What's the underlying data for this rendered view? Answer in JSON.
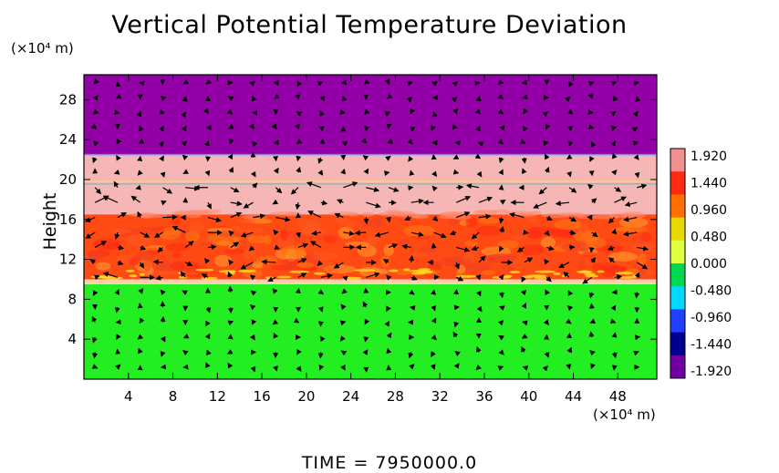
{
  "chart_data": {
    "type": "heatmap",
    "title": "Vertical Potential Temperature Deviation",
    "ylabel": "Height",
    "xlabel": "",
    "x_unit_label": "(×10⁴ m)",
    "y_unit_label": "(×10⁴ m)",
    "footer": "TIME = 7950000.0",
    "xlim": [
      0,
      51.5
    ],
    "ylim": [
      0,
      30.5
    ],
    "x_ticks": [
      4,
      8,
      12,
      16,
      20,
      24,
      28,
      32,
      36,
      40,
      44,
      48
    ],
    "y_ticks": [
      4,
      8,
      12,
      16,
      20,
      24,
      28
    ],
    "colorbar": {
      "labels": [
        "1.920",
        "1.440",
        "0.960",
        "0.480",
        "0.000",
        "-0.480",
        "-0.960",
        "-1.440",
        "-1.920"
      ],
      "values": [
        1.92,
        1.44,
        0.96,
        0.48,
        0.0,
        -0.48,
        -0.96,
        -1.44,
        -1.92
      ],
      "colors": [
        "#f09090",
        "#ff2a10",
        "#ff7000",
        "#e8d800",
        "#e0ff40",
        "#00d850",
        "#00d8ff",
        "#2040ff",
        "#000090",
        "#7000a0"
      ]
    },
    "bands": [
      {
        "y_from": 22.5,
        "y_to": 30.5,
        "value": -1.92,
        "color": "#9400a8"
      },
      {
        "y_from": 16.5,
        "y_to": 22.5,
        "value": 1.92,
        "color": "#f6b6b6"
      },
      {
        "y_from": 10.0,
        "y_to": 16.5,
        "value": 1.7,
        "color": "#ff4a14"
      },
      {
        "y_from": 0,
        "y_to": 9.5,
        "value": 0.0,
        "color": "#22ee22"
      }
    ],
    "wind_vectors": true
  }
}
